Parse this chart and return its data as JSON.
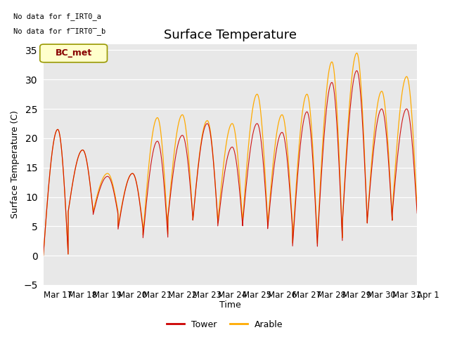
{
  "title": "Surface Temperature",
  "ylabel": "Surface Temperature (C)",
  "xlabel": "Time",
  "ylim": [
    -5,
    36
  ],
  "yticks": [
    -5,
    0,
    5,
    10,
    15,
    20,
    25,
    30,
    35
  ],
  "bg_color": "#e8e8e8",
  "no_data_text_1": "No data for f_IRT0_a",
  "no_data_text_2": "No data for f̅IRT0̅_b",
  "bc_met_label": "BC_met",
  "legend_entries": [
    "Tower",
    "Arable"
  ],
  "legend_colors": [
    "#cc0000",
    "#ffaa00"
  ],
  "title_fontsize": 13,
  "label_fontsize": 9,
  "tick_fontsize": 8.5,
  "n_days": 15,
  "xtick_labels": [
    "Mar 17",
    "Mar 18",
    "Mar 19",
    "Mar 20",
    "Mar 21",
    "Mar 22",
    "Mar 23",
    "Mar 24",
    "Mar 25",
    "Mar 26",
    "Mar 27",
    "Mar 28",
    "Mar 29",
    "Mar 30",
    "Mar 31",
    "Apr 1"
  ],
  "pts_per_day": 288,
  "day_peaks_tower": [
    21.5,
    18.0,
    13.5,
    14.0,
    19.5,
    20.5,
    22.5,
    18.5,
    22.5,
    21.0,
    24.5,
    29.5,
    31.5,
    25.0,
    25.0
  ],
  "day_mins_tower": [
    0.0,
    7.5,
    7.0,
    4.5,
    3.0,
    6.5,
    6.0,
    5.0,
    5.5,
    4.5,
    1.5,
    2.5,
    5.5,
    6.0,
    7.0
  ],
  "day_peaks_arable": [
    21.5,
    18.0,
    14.0,
    14.0,
    23.5,
    24.0,
    23.0,
    22.5,
    27.5,
    24.0,
    27.5,
    33.0,
    34.5,
    28.0,
    30.5
  ],
  "day_mins_arable": [
    0.0,
    7.5,
    7.5,
    5.0,
    3.5,
    6.5,
    6.0,
    5.5,
    6.0,
    5.0,
    2.0,
    3.0,
    5.5,
    6.0,
    7.5
  ]
}
